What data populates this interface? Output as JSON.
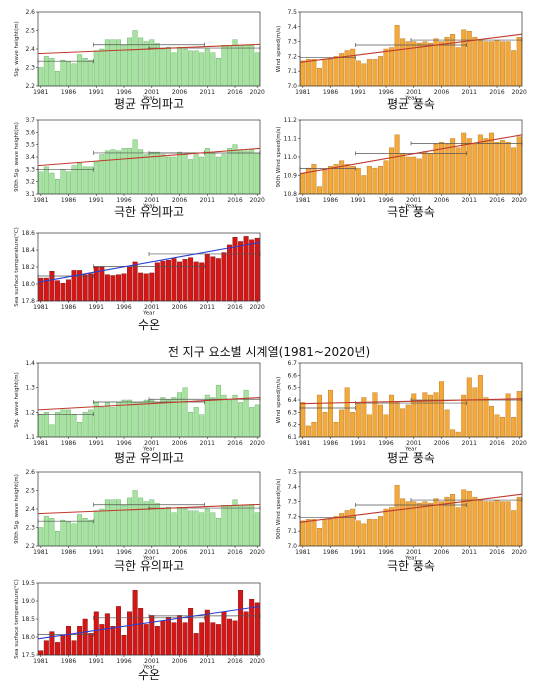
{
  "page_title": "전 지구 요소별 시계열(1981~2020년)",
  "colors": {
    "green": "#a6e3a0",
    "green_edge": "#5aa858",
    "orange": "#f2a83a",
    "orange_edge": "#b87316",
    "red": "#d51616",
    "red_edge": "#7a0b0b",
    "trend_red": "#c0392b",
    "trend_blue": "#2a3fcf",
    "mean_line": "#555555"
  },
  "chart_data": [
    {
      "type": "bar",
      "panel": "A1",
      "caption": "평균 유의파고",
      "xlabel": "Year",
      "ylabel": "Sig. wave height(m)",
      "ylim": [
        2.2,
        2.6
      ],
      "yticks": [
        2.2,
        2.3,
        2.4,
        2.5,
        2.6
      ],
      "xticks": [
        1981,
        1986,
        1991,
        1996,
        2001,
        2006,
        2011,
        2016,
        2020
      ],
      "color": "green",
      "x": [
        1981,
        1982,
        1983,
        1984,
        1985,
        1986,
        1987,
        1988,
        1989,
        1990,
        1991,
        1992,
        1993,
        1994,
        1995,
        1996,
        1997,
        1998,
        1999,
        2000,
        2001,
        2002,
        2003,
        2004,
        2005,
        2006,
        2007,
        2008,
        2009,
        2010,
        2011,
        2012,
        2013,
        2014,
        2015,
        2016,
        2017,
        2018,
        2019,
        2020
      ],
      "values": [
        2.3,
        2.36,
        2.35,
        2.28,
        2.34,
        2.33,
        2.32,
        2.37,
        2.35,
        2.34,
        2.39,
        2.4,
        2.45,
        2.45,
        2.45,
        2.42,
        2.46,
        2.5,
        2.46,
        2.44,
        2.45,
        2.43,
        2.4,
        2.41,
        2.38,
        2.41,
        2.4,
        2.39,
        2.39,
        2.38,
        2.4,
        2.38,
        2.35,
        2.42,
        2.42,
        2.45,
        2.42,
        2.42,
        2.42,
        2.38
      ],
      "trend": [
        2.375,
        2.425
      ],
      "trend_color": "trend_red"
    },
    {
      "type": "bar",
      "panel": "A2",
      "caption": "평균 풍속",
      "xlabel": "Year",
      "ylabel": "Wind speed(m/s)",
      "ylim": [
        7.0,
        7.5
      ],
      "yticks": [
        7.0,
        7.1,
        7.2,
        7.3,
        7.4,
        7.5
      ],
      "xticks": [
        1981,
        1986,
        1991,
        1996,
        2001,
        2006,
        2011,
        2016,
        2020
      ],
      "color": "orange",
      "x": [
        1981,
        1982,
        1983,
        1984,
        1985,
        1986,
        1987,
        1988,
        1989,
        1990,
        1991,
        1992,
        1993,
        1994,
        1995,
        1996,
        1997,
        1998,
        1999,
        2000,
        2001,
        2002,
        2003,
        2004,
        2005,
        2006,
        2007,
        2008,
        2009,
        2010,
        2011,
        2012,
        2013,
        2014,
        2015,
        2016,
        2017,
        2018,
        2019,
        2020
      ],
      "values": [
        7.17,
        7.18,
        7.18,
        7.12,
        7.18,
        7.18,
        7.2,
        7.22,
        7.24,
        7.25,
        7.17,
        7.15,
        7.18,
        7.18,
        7.2,
        7.25,
        7.26,
        7.41,
        7.32,
        7.3,
        7.3,
        7.29,
        7.3,
        7.29,
        7.32,
        7.3,
        7.33,
        7.35,
        7.26,
        7.38,
        7.37,
        7.33,
        7.31,
        7.3,
        7.3,
        7.31,
        7.3,
        7.3,
        7.24,
        7.33
      ],
      "trend": [
        7.16,
        7.35
      ],
      "trend_color": "trend_red"
    },
    {
      "type": "bar",
      "panel": "B1",
      "caption": "극한 유의파고",
      "xlabel": "Year",
      "ylabel": "90th Sig. wave height(m)",
      "ylim": [
        3.1,
        3.7
      ],
      "yticks": [
        3.1,
        3.2,
        3.3,
        3.4,
        3.5,
        3.6,
        3.7
      ],
      "xticks": [
        1981,
        1986,
        1991,
        1996,
        2001,
        2006,
        2011,
        2016,
        2020
      ],
      "color": "green",
      "x": [
        1981,
        1982,
        1983,
        1984,
        1985,
        1986,
        1987,
        1988,
        1989,
        1990,
        1991,
        1992,
        1993,
        1994,
        1995,
        1996,
        1997,
        1998,
        1999,
        2000,
        2001,
        2002,
        2003,
        2004,
        2005,
        2006,
        2007,
        2008,
        2009,
        2010,
        2011,
        2012,
        2013,
        2014,
        2015,
        2016,
        2017,
        2018,
        2019,
        2020
      ],
      "values": [
        3.28,
        3.32,
        3.27,
        3.22,
        3.3,
        3.28,
        3.33,
        3.35,
        3.32,
        3.32,
        3.36,
        3.42,
        3.45,
        3.46,
        3.45,
        3.47,
        3.47,
        3.54,
        3.46,
        3.42,
        3.44,
        3.44,
        3.42,
        3.4,
        3.4,
        3.44,
        3.42,
        3.38,
        3.42,
        3.4,
        3.47,
        3.43,
        3.4,
        3.42,
        3.47,
        3.5,
        3.46,
        3.45,
        3.46,
        3.43
      ],
      "trend": [
        3.33,
        3.47
      ],
      "trend_color": "trend_red"
    },
    {
      "type": "bar",
      "panel": "B2",
      "caption": "극한 풍속",
      "xlabel": "Year",
      "ylabel": "90th Wind speed(m/s)",
      "ylim": [
        10.8,
        11.2
      ],
      "yticks": [
        10.8,
        10.9,
        11.0,
        11.1,
        11.2
      ],
      "xticks": [
        1981,
        1986,
        1991,
        1996,
        2001,
        2006,
        2011,
        2016,
        2020
      ],
      "color": "orange",
      "x": [
        1981,
        1982,
        1983,
        1984,
        1985,
        1986,
        1987,
        1988,
        1989,
        1990,
        1991,
        1992,
        1993,
        1994,
        1995,
        1996,
        1997,
        1998,
        1999,
        2000,
        2001,
        2002,
        2003,
        2004,
        2005,
        2006,
        2007,
        2008,
        2009,
        2010,
        2011,
        2012,
        2013,
        2014,
        2015,
        2016,
        2017,
        2018,
        2019,
        2020
      ],
      "values": [
        10.91,
        10.94,
        10.96,
        10.84,
        10.93,
        10.95,
        10.96,
        10.98,
        10.96,
        10.95,
        10.94,
        10.9,
        10.95,
        10.94,
        10.95,
        10.98,
        11.05,
        11.12,
        11.02,
        11.0,
        11.0,
        10.99,
        11.03,
        11.02,
        11.07,
        11.08,
        11.07,
        11.1,
        11.05,
        11.13,
        11.1,
        11.07,
        11.12,
        11.1,
        11.13,
        11.08,
        11.09,
        11.08,
        11.05,
        11.11
      ],
      "trend": [
        10.91,
        11.12
      ],
      "trend_color": "trend_red"
    },
    {
      "type": "bar",
      "panel": "C1",
      "caption": "수온",
      "xlabel": "Year",
      "ylabel": "Sea surface temperature(°C)",
      "ylim": [
        17.8,
        18.6
      ],
      "yticks": [
        17.8,
        18.0,
        18.2,
        18.4,
        18.6
      ],
      "xticks": [
        1981,
        1986,
        1991,
        1996,
        2001,
        2006,
        2011,
        2016,
        2020
      ],
      "color": "red",
      "x": [
        1981,
        1982,
        1983,
        1984,
        1985,
        1986,
        1987,
        1988,
        1989,
        1990,
        1991,
        1992,
        1993,
        1994,
        1995,
        1996,
        1997,
        1998,
        1999,
        2000,
        2001,
        2002,
        2003,
        2004,
        2005,
        2006,
        2007,
        2008,
        2009,
        2010,
        2011,
        2012,
        2013,
        2014,
        2015,
        2016,
        2017,
        2018,
        2019,
        2020
      ],
      "values": [
        18.07,
        18.07,
        18.15,
        18.04,
        18.01,
        18.05,
        18.16,
        18.16,
        18.11,
        18.12,
        18.2,
        18.2,
        18.11,
        18.1,
        18.11,
        18.12,
        18.2,
        18.26,
        18.13,
        18.12,
        18.13,
        18.25,
        18.27,
        18.28,
        18.3,
        18.26,
        18.29,
        18.31,
        18.26,
        18.25,
        18.35,
        18.32,
        18.3,
        18.37,
        18.46,
        18.55,
        18.5,
        18.56,
        18.52,
        18.54
      ],
      "trend": [
        18.02,
        18.49
      ],
      "trend_color": "trend_blue"
    },
    {
      "type": "bar",
      "panel": "D1",
      "caption": "평균 유의파고",
      "xlabel": "Year",
      "ylabel": "Sig. wave height(m)",
      "ylim": [
        1.1,
        1.4
      ],
      "yticks": [
        1.1,
        1.2,
        1.3,
        1.4
      ],
      "xticks": [
        1981,
        1986,
        1991,
        1996,
        2001,
        2006,
        2011,
        2016,
        2020
      ],
      "color": "green",
      "x": [
        1981,
        1982,
        1983,
        1984,
        1985,
        1986,
        1987,
        1988,
        1989,
        1990,
        1991,
        1992,
        1993,
        1994,
        1995,
        1996,
        1997,
        1998,
        1999,
        2000,
        2001,
        2002,
        2003,
        2004,
        2005,
        2006,
        2007,
        2008,
        2009,
        2010,
        2011,
        2012,
        2013,
        2014,
        2015,
        2016,
        2017,
        2018,
        2019,
        2020
      ],
      "values": [
        1.19,
        1.2,
        1.15,
        1.2,
        1.21,
        1.21,
        1.19,
        1.16,
        1.2,
        1.21,
        1.24,
        1.22,
        1.24,
        1.22,
        1.24,
        1.25,
        1.25,
        1.24,
        1.24,
        1.25,
        1.25,
        1.24,
        1.26,
        1.25,
        1.26,
        1.28,
        1.3,
        1.2,
        1.22,
        1.19,
        1.27,
        1.26,
        1.31,
        1.27,
        1.25,
        1.27,
        1.24,
        1.29,
        1.22,
        1.23
      ],
      "trend": [
        1.21,
        1.26
      ],
      "trend_color": "trend_red"
    },
    {
      "type": "bar",
      "panel": "D2",
      "caption": "평균 풍속",
      "xlabel": "Year",
      "ylabel": "Wind speed(m/s)",
      "ylim": [
        6.1,
        6.7
      ],
      "yticks": [
        6.1,
        6.2,
        6.3,
        6.4,
        6.5,
        6.6,
        6.7
      ],
      "xticks": [
        1981,
        1986,
        1991,
        1996,
        2001,
        2006,
        2011,
        2016,
        2020
      ],
      "color": "orange",
      "x": [
        1981,
        1982,
        1983,
        1984,
        1985,
        1986,
        1987,
        1988,
        1989,
        1990,
        1991,
        1992,
        1993,
        1994,
        1995,
        1996,
        1997,
        1998,
        1999,
        2000,
        2001,
        2002,
        2003,
        2004,
        2005,
        2006,
        2007,
        2008,
        2009,
        2010,
        2011,
        2012,
        2013,
        2014,
        2015,
        2016,
        2017,
        2018,
        2019,
        2020
      ],
      "values": [
        6.38,
        6.19,
        6.22,
        6.44,
        6.3,
        6.48,
        6.22,
        6.32,
        6.5,
        6.3,
        6.37,
        6.42,
        6.28,
        6.46,
        6.36,
        6.28,
        6.44,
        6.38,
        6.33,
        6.36,
        6.45,
        6.4,
        6.46,
        6.44,
        6.46,
        6.55,
        6.32,
        6.16,
        6.14,
        6.44,
        6.58,
        6.5,
        6.6,
        6.42,
        6.35,
        6.28,
        6.26,
        6.45,
        6.26,
        6.47
      ],
      "trend": [
        6.37,
        6.41
      ],
      "trend_color": "trend_red"
    },
    {
      "type": "bar",
      "panel": "E1",
      "caption": "극한 유의파고",
      "xlabel": "Year",
      "ylabel": "90th Sig. wave height(m)",
      "ylim": [
        2.2,
        2.6
      ],
      "yticks": [
        2.2,
        2.3,
        2.4,
        2.5,
        2.6
      ],
      "xticks": [
        1981,
        1986,
        1991,
        1996,
        2001,
        2006,
        2011,
        2016,
        2020
      ],
      "color": "green",
      "x": [
        1981,
        1982,
        1983,
        1984,
        1985,
        1986,
        1987,
        1988,
        1989,
        1990,
        1991,
        1992,
        1993,
        1994,
        1995,
        1996,
        1997,
        1998,
        1999,
        2000,
        2001,
        2002,
        2003,
        2004,
        2005,
        2006,
        2007,
        2008,
        2009,
        2010,
        2011,
        2012,
        2013,
        2014,
        2015,
        2016,
        2017,
        2018,
        2019,
        2020
      ],
      "values": [
        2.3,
        2.36,
        2.35,
        2.28,
        2.34,
        2.33,
        2.32,
        2.37,
        2.35,
        2.34,
        2.39,
        2.4,
        2.45,
        2.45,
        2.45,
        2.42,
        2.46,
        2.5,
        2.46,
        2.44,
        2.45,
        2.43,
        2.4,
        2.41,
        2.38,
        2.41,
        2.4,
        2.39,
        2.39,
        2.38,
        2.4,
        2.38,
        2.35,
        2.42,
        2.42,
        2.45,
        2.42,
        2.42,
        2.42,
        2.38
      ],
      "trend": [
        2.375,
        2.425
      ],
      "trend_color": "trend_red"
    },
    {
      "type": "bar",
      "panel": "E2",
      "caption": "극한 풍속",
      "xlabel": "Year",
      "ylabel": "90th Wind speed(m/s)",
      "ylim": [
        7.0,
        7.5
      ],
      "yticks": [
        7.0,
        7.1,
        7.2,
        7.3,
        7.4,
        7.5
      ],
      "xticks": [
        1981,
        1986,
        1991,
        1996,
        2001,
        2006,
        2011,
        2016,
        2020
      ],
      "color": "orange",
      "x": [
        1981,
        1982,
        1983,
        1984,
        1985,
        1986,
        1987,
        1988,
        1989,
        1990,
        1991,
        1992,
        1993,
        1994,
        1995,
        1996,
        1997,
        1998,
        1999,
        2000,
        2001,
        2002,
        2003,
        2004,
        2005,
        2006,
        2007,
        2008,
        2009,
        2010,
        2011,
        2012,
        2013,
        2014,
        2015,
        2016,
        2017,
        2018,
        2019,
        2020
      ],
      "values": [
        7.17,
        7.18,
        7.18,
        7.12,
        7.18,
        7.18,
        7.2,
        7.22,
        7.24,
        7.25,
        7.17,
        7.15,
        7.18,
        7.18,
        7.2,
        7.25,
        7.26,
        7.41,
        7.32,
        7.3,
        7.3,
        7.29,
        7.3,
        7.29,
        7.32,
        7.3,
        7.33,
        7.35,
        7.26,
        7.38,
        7.37,
        7.33,
        7.31,
        7.3,
        7.3,
        7.31,
        7.3,
        7.3,
        7.24,
        7.33
      ],
      "trend": [
        7.16,
        7.35
      ],
      "trend_color": "trend_red"
    },
    {
      "type": "bar",
      "panel": "F1",
      "caption": "수온",
      "xlabel": "Year",
      "ylabel": "Sea surface temperature(°C)",
      "ylim": [
        17.5,
        19.5
      ],
      "yticks": [
        17.5,
        18.0,
        18.5,
        19.0,
        19.5
      ],
      "xticks": [
        1981,
        1986,
        1991,
        1996,
        2001,
        2006,
        2011,
        2016,
        2020
      ],
      "color": "red",
      "x": [
        1981,
        1982,
        1983,
        1984,
        1985,
        1986,
        1987,
        1988,
        1989,
        1990,
        1991,
        1992,
        1993,
        1994,
        1995,
        1996,
        1997,
        1998,
        1999,
        2000,
        2001,
        2002,
        2003,
        2004,
        2005,
        2006,
        2007,
        2008,
        2009,
        2010,
        2011,
        2012,
        2013,
        2014,
        2015,
        2016,
        2017,
        2018,
        2019,
        2020
      ],
      "values": [
        17.62,
        17.9,
        18.15,
        17.85,
        18.05,
        18.3,
        17.9,
        18.3,
        18.5,
        18.1,
        18.7,
        18.35,
        18.65,
        18.3,
        18.85,
        18.05,
        18.7,
        19.3,
        18.8,
        18.35,
        18.6,
        18.3,
        18.45,
        18.55,
        18.4,
        18.6,
        18.4,
        18.8,
        18.1,
        18.4,
        18.75,
        18.4,
        18.35,
        18.7,
        18.5,
        18.45,
        19.3,
        18.7,
        19.05,
        18.95
      ],
      "trend": [
        17.95,
        18.85
      ],
      "trend_color": "trend_blue"
    }
  ]
}
